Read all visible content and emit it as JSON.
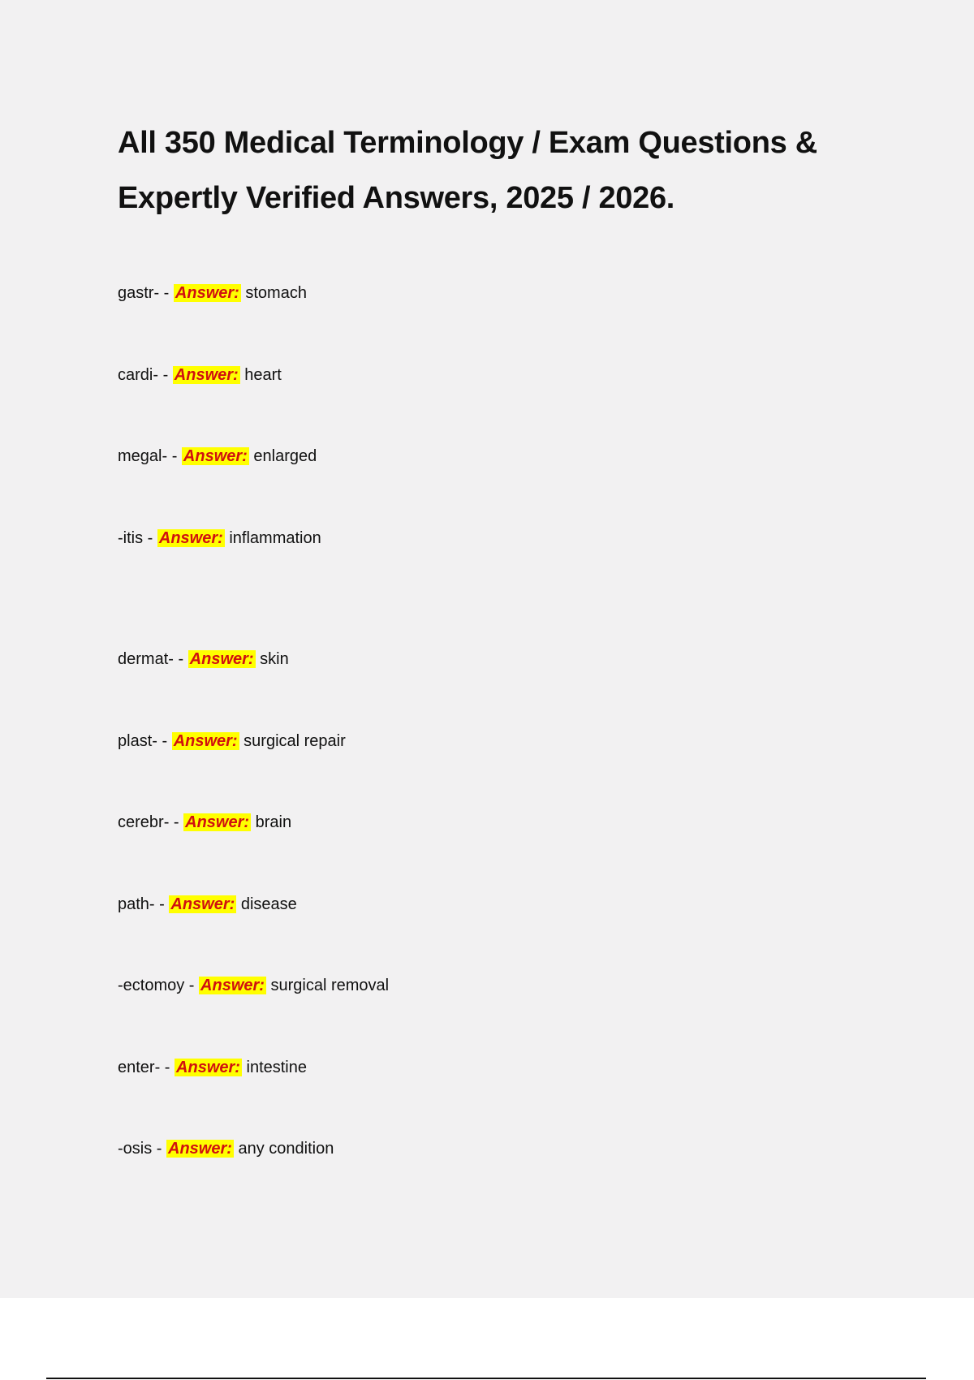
{
  "title": "All 350 Medical Terminology / Exam Questions & Expertly Verified Answers, 2025 / 2026.",
  "items": [
    {
      "term": "gastr- -",
      "label": "Answer:",
      "answer": "stomach"
    },
    {
      "term": "cardi- -",
      "label": "Answer:",
      "answer": "heart"
    },
    {
      "term": "megal- -",
      "label": "Answer:",
      "answer": "enlarged"
    },
    {
      "term": "-itis -",
      "label": "Answer:",
      "answer": "inflammation"
    },
    {
      "term": "dermat- -",
      "label": "Answer:",
      "answer": "skin"
    },
    {
      "term": "plast- -",
      "label": "Answer:",
      "answer": "surgical repair"
    },
    {
      "term": "cerebr- -",
      "label": "Answer:",
      "answer": "brain"
    },
    {
      "term": "path- -",
      "label": "Answer:",
      "answer": "disease"
    },
    {
      "term": "-ectomoy -",
      "label": "Answer:",
      "answer": "surgical removal"
    },
    {
      "term": "enter- -",
      "label": "Answer:",
      "answer": "intestine"
    },
    {
      "term": "-osis -",
      "label": "Answer:",
      "answer": "any condition"
    }
  ]
}
